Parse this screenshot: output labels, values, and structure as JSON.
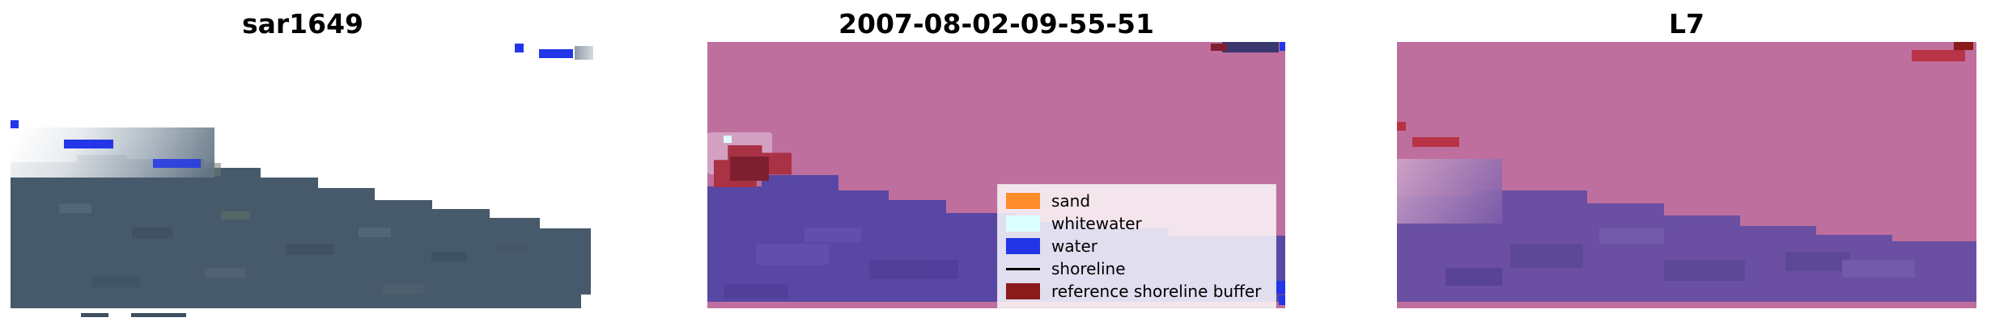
{
  "chart_data": {
    "type": "image",
    "panels": [
      {
        "id": "sar",
        "title": "sar1649"
      },
      {
        "id": "classified",
        "title": "2007-08-02-09-55-51"
      },
      {
        "id": "l7",
        "title": "L7"
      }
    ],
    "legend": {
      "position": "lower-right-of-middle-panel",
      "entries": [
        {
          "label": "sand",
          "color": "#ff8c2a",
          "type": "patch"
        },
        {
          "label": "whitewater",
          "color": "#dcffff",
          "type": "patch"
        },
        {
          "label": "water",
          "color": "#2236e8",
          "type": "patch"
        },
        {
          "label": "shoreline",
          "color": "#000000",
          "type": "line"
        },
        {
          "label": "reference shoreline buffer",
          "color": "#8b1a1a",
          "type": "patch"
        }
      ]
    }
  },
  "colors": {
    "background": "#ffffff",
    "terrain": "#475a6b",
    "terrain_dark": "#3d4f61",
    "water": "#2236e8",
    "pink_land": "#bf6f9d",
    "purple_water": "#5847a4",
    "purple_water_l7": "#6a4fa3",
    "red_patch": "#a93245",
    "red_patch_dark": "#7e1f30",
    "crimson": "#b73345",
    "dark_red": "#8b1a1a",
    "navy_bar": "#3a376f",
    "light_pink_patch": "#d2a0c0"
  }
}
